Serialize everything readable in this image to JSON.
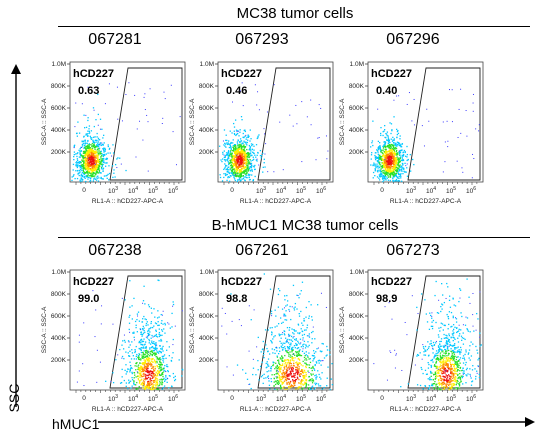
{
  "groups": [
    {
      "title": "MC38 tumor cells",
      "samples": [
        {
          "id": "067281",
          "gate_label": "hCD227",
          "percent": "0.63"
        },
        {
          "id": "067293",
          "gate_label": "hCD227",
          "percent": "0.46"
        },
        {
          "id": "067296",
          "gate_label": "hCD227",
          "percent": "0.40"
        }
      ]
    },
    {
      "title": "B-hMUC1 MC38 tumor cells",
      "samples": [
        {
          "id": "067238",
          "gate_label": "hCD227",
          "percent": "99.0"
        },
        {
          "id": "067261",
          "gate_label": "hCD227",
          "percent": "98.8"
        },
        {
          "id": "067273",
          "gate_label": "hCD227",
          "percent": "98.9"
        }
      ]
    }
  ],
  "axis_labels": {
    "y": "SSC",
    "x": "hMUC1"
  },
  "plot_axis": {
    "x_label": "RL1-A :: hCD227-APC-A",
    "y_label": "SSC-A :: SSC-A",
    "y_ticks": [
      "1.0M",
      "800K",
      "600K",
      "400K",
      "200K"
    ],
    "x_tick_zero": "0",
    "x_tick_base": "10",
    "x_tick_exps": [
      "3",
      "4",
      "5",
      "6"
    ]
  },
  "chart_data": [
    {
      "type": "scatter",
      "title": "067281",
      "series": [
        {
          "name": "hCD227",
          "values": [
            0.63
          ]
        }
      ],
      "ylim": [
        0,
        1000000
      ]
    },
    {
      "type": "scatter",
      "title": "067293",
      "series": [
        {
          "name": "hCD227",
          "values": [
            0.46
          ]
        }
      ],
      "ylim": [
        0,
        1000000
      ]
    },
    {
      "type": "scatter",
      "title": "067296",
      "series": [
        {
          "name": "hCD227",
          "values": [
            0.4
          ]
        }
      ],
      "ylim": [
        0,
        1000000
      ]
    },
    {
      "type": "scatter",
      "title": "067238",
      "series": [
        {
          "name": "hCD227",
          "values": [
            99.0
          ]
        }
      ],
      "ylim": [
        0,
        1000000
      ]
    },
    {
      "type": "scatter",
      "title": "067261",
      "series": [
        {
          "name": "hCD227",
          "values": [
            98.8
          ]
        }
      ],
      "ylim": [
        0,
        1000000
      ]
    },
    {
      "type": "scatter",
      "title": "067273",
      "series": [
        {
          "name": "hCD227",
          "values": [
            98.9
          ]
        }
      ],
      "ylim": [
        0,
        1000000
      ]
    }
  ]
}
